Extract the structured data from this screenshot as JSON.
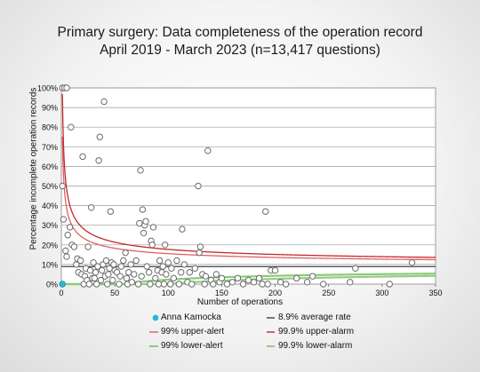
{
  "chart_data": {
    "type": "scatter",
    "title": "Primary surgery: Data completeness of the operation record",
    "subtitle": "April 2019 - March 2023 (n=13,417 questions)",
    "xlabel": "Number of operations",
    "ylabel": "Percentage incomplete operation records",
    "xlim": [
      0,
      350
    ],
    "ylim": [
      0,
      100
    ],
    "x_ticks": [
      "0",
      "50",
      "100",
      "150",
      "200",
      "250",
      "300",
      "350"
    ],
    "y_ticks": [
      "0%",
      "10%",
      "20%",
      "30%",
      "40%",
      "50%",
      "60%",
      "70%",
      "80%",
      "90%",
      "100%"
    ],
    "grid": true,
    "average_rate": 8.9,
    "highlight": {
      "name": "Anna Kamocka",
      "x": 1,
      "y": 0,
      "color": "#29b6d9"
    },
    "legend": [
      {
        "label": "Anna Kamocka",
        "key": "highlight",
        "color": "#29b6d9"
      },
      {
        "label": "8.9% average rate",
        "key": "average",
        "color": "#555555"
      },
      {
        "label": "99% upper-alert",
        "key": "upper99",
        "color": "#e06060"
      },
      {
        "label": "99.9% upper-alarm",
        "key": "upper999",
        "color": "#c62828"
      },
      {
        "label": "99% lower-alert",
        "key": "lower99",
        "color": "#88cc77"
      },
      {
        "label": "99.9% lower-alarm",
        "key": "lower999",
        "color": "#9bc98a"
      }
    ],
    "points": [
      [
        1,
        100
      ],
      [
        3,
        100
      ],
      [
        5,
        100
      ],
      [
        1,
        50
      ],
      [
        2,
        33
      ],
      [
        4,
        17
      ],
      [
        5,
        14
      ],
      [
        6,
        25
      ],
      [
        8,
        29
      ],
      [
        9,
        80
      ],
      [
        10,
        20
      ],
      [
        12,
        19
      ],
      [
        14,
        10
      ],
      [
        15,
        13
      ],
      [
        16,
        6
      ],
      [
        18,
        12
      ],
      [
        19,
        5
      ],
      [
        20,
        65
      ],
      [
        21,
        0
      ],
      [
        22,
        4
      ],
      [
        23,
        8
      ],
      [
        24,
        2
      ],
      [
        25,
        19
      ],
      [
        26,
        0
      ],
      [
        27,
        7
      ],
      [
        28,
        39
      ],
      [
        29,
        3
      ],
      [
        30,
        11
      ],
      [
        31,
        3
      ],
      [
        32,
        6
      ],
      [
        33,
        0
      ],
      [
        34,
        9
      ],
      [
        35,
        63
      ],
      [
        36,
        75
      ],
      [
        37,
        2
      ],
      [
        38,
        7
      ],
      [
        39,
        10
      ],
      [
        40,
        93
      ],
      [
        41,
        4
      ],
      [
        42,
        12
      ],
      [
        43,
        0
      ],
      [
        44,
        5
      ],
      [
        45,
        8
      ],
      [
        46,
        37
      ],
      [
        47,
        11
      ],
      [
        48,
        2
      ],
      [
        49,
        10
      ],
      [
        50,
        7
      ],
      [
        52,
        6
      ],
      [
        54,
        0
      ],
      [
        55,
        4
      ],
      [
        56,
        9
      ],
      [
        58,
        12
      ],
      [
        60,
        16
      ],
      [
        61,
        3
      ],
      [
        62,
        0
      ],
      [
        63,
        6
      ],
      [
        65,
        10
      ],
      [
        66,
        1
      ],
      [
        68,
        5
      ],
      [
        70,
        12
      ],
      [
        72,
        0
      ],
      [
        73,
        31
      ],
      [
        74,
        58
      ],
      [
        75,
        4
      ],
      [
        76,
        38
      ],
      [
        77,
        26
      ],
      [
        78,
        30
      ],
      [
        79,
        32
      ],
      [
        80,
        9
      ],
      [
        82,
        6
      ],
      [
        83,
        0
      ],
      [
        84,
        22
      ],
      [
        85,
        20
      ],
      [
        86,
        29
      ],
      [
        88,
        3
      ],
      [
        90,
        7
      ],
      [
        91,
        0
      ],
      [
        92,
        12
      ],
      [
        94,
        6
      ],
      [
        95,
        9
      ],
      [
        96,
        0
      ],
      [
        97,
        20
      ],
      [
        98,
        5
      ],
      [
        100,
        11
      ],
      [
        102,
        0
      ],
      [
        103,
        8
      ],
      [
        105,
        3
      ],
      [
        108,
        12
      ],
      [
        110,
        0
      ],
      [
        112,
        6
      ],
      [
        113,
        28
      ],
      [
        115,
        10
      ],
      [
        118,
        1
      ],
      [
        120,
        6
      ],
      [
        122,
        0
      ],
      [
        125,
        8
      ],
      [
        128,
        50
      ],
      [
        129,
        16
      ],
      [
        130,
        19
      ],
      [
        132,
        5
      ],
      [
        134,
        0
      ],
      [
        135,
        4
      ],
      [
        137,
        68
      ],
      [
        140,
        2
      ],
      [
        142,
        0
      ],
      [
        145,
        5
      ],
      [
        148,
        1
      ],
      [
        150,
        3
      ],
      [
        155,
        0
      ],
      [
        160,
        1
      ],
      [
        165,
        3
      ],
      [
        170,
        0
      ],
      [
        175,
        2
      ],
      [
        180,
        1
      ],
      [
        185,
        3
      ],
      [
        188,
        0
      ],
      [
        191,
        37
      ],
      [
        193,
        0
      ],
      [
        196,
        7
      ],
      [
        200,
        7
      ],
      [
        205,
        1
      ],
      [
        210,
        0
      ],
      [
        220,
        3
      ],
      [
        230,
        1
      ],
      [
        235,
        4
      ],
      [
        245,
        0
      ],
      [
        270,
        1
      ],
      [
        275,
        8
      ],
      [
        307,
        0
      ],
      [
        328,
        11
      ]
    ]
  }
}
